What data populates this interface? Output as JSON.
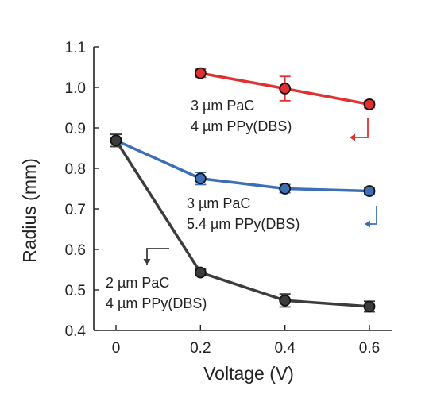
{
  "chart_data": {
    "type": "line",
    "xlabel": "Voltage (V)",
    "ylabel": "Radius (mm)",
    "xlim": [
      0,
      0.6
    ],
    "ylim": [
      0.4,
      1.1
    ],
    "x_ticks": [
      "0",
      "0.2",
      "0.4",
      "0.6"
    ],
    "y_ticks": [
      "0.4",
      "0.5",
      "0.6",
      "0.7",
      "0.8",
      "0.9",
      "1.0",
      "1.1"
    ],
    "grid": false,
    "series": [
      {
        "color": "#e03030",
        "x": [
          0.2,
          0.4,
          0.6
        ],
        "y": [
          1.035,
          0.997,
          0.958
        ],
        "err": [
          0.01,
          0.03,
          0.008
        ],
        "annotation": [
          "3 µm PaC",
          "4 µm PPy(DBS)"
        ]
      },
      {
        "color": "#3d6fb5",
        "x": [
          0,
          0.2,
          0.4,
          0.6
        ],
        "y": [
          0.869,
          0.775,
          0.75,
          0.744
        ],
        "err": [
          0.015,
          0.015,
          0.01,
          0.008
        ],
        "annotation": [
          "3 µm PaC",
          "5.4 µm PPy(DBS)"
        ]
      },
      {
        "color": "#3c3c3c",
        "x": [
          0,
          0.2,
          0.4,
          0.6
        ],
        "y": [
          0.869,
          0.543,
          0.474,
          0.459
        ],
        "err": [
          0.015,
          0.008,
          0.016,
          0.013
        ],
        "annotation": [
          "2 µm PaC",
          "4 µm PPy(DBS)"
        ]
      }
    ]
  }
}
